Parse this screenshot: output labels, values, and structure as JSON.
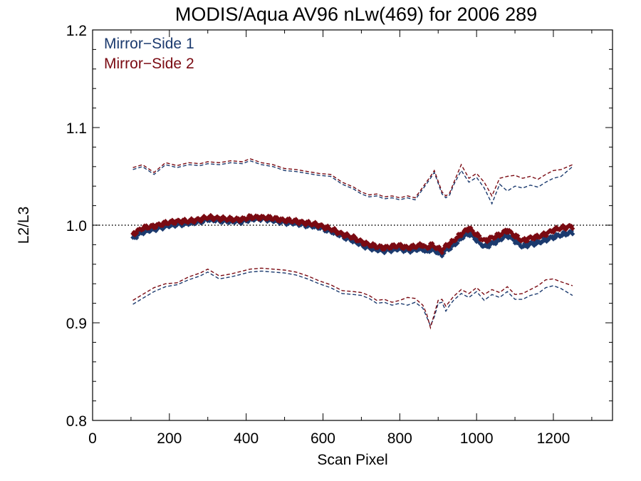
{
  "chart_data": {
    "type": "scatter",
    "title": "MODIS/Aqua AV96 nLw(469) for 2006 289",
    "xlabel": "Scan Pixel",
    "ylabel": "L2/L3",
    "xlim": [
      0,
      1354
    ],
    "ylim": [
      0.8,
      1.2
    ],
    "x_ticks": [
      0,
      200,
      400,
      600,
      800,
      1000,
      1200
    ],
    "y_ticks": [
      0.8,
      0.9,
      1.0,
      1.1,
      1.2
    ],
    "x_tick_labels": [
      "0",
      "200",
      "400",
      "600",
      "800",
      "1000",
      "1200"
    ],
    "y_tick_labels": [
      "0.8",
      "0.9",
      "1.0",
      "1.1",
      "1.2"
    ],
    "reference_line": {
      "y": 1.0,
      "style": "dotted",
      "color": "#000000"
    },
    "legend_position": "top-left",
    "series": [
      {
        "name": "Mirror−Side 1",
        "color": "#1b3a6e",
        "mean": {
          "x": [
            105,
            130,
            160,
            190,
            220,
            250,
            280,
            300,
            330,
            360,
            390,
            410,
            440,
            470,
            500,
            530,
            560,
            590,
            620,
            650,
            680,
            700,
            720,
            740,
            760,
            780,
            800,
            820,
            840,
            860,
            870,
            880,
            890,
            900,
            910,
            920,
            930,
            940,
            960,
            980,
            1000,
            1020,
            1040,
            1060,
            1080,
            1100,
            1120,
            1140,
            1160,
            1180,
            1200,
            1220,
            1250
          ],
          "y": [
            0.987,
            0.993,
            0.996,
            0.999,
            1.001,
            1.002,
            1.004,
            1.006,
            1.005,
            1.004,
            1.004,
            1.006,
            1.007,
            1.005,
            1.003,
            1.002,
            1.0,
            0.998,
            0.994,
            0.989,
            0.984,
            0.98,
            0.977,
            0.975,
            0.974,
            0.975,
            0.976,
            0.974,
            0.975,
            0.976,
            0.972,
            0.976,
            0.974,
            0.972,
            0.97,
            0.975,
            0.977,
            0.979,
            0.987,
            0.992,
            0.985,
            0.978,
            0.981,
            0.985,
            0.99,
            0.984,
            0.978,
            0.981,
            0.982,
            0.985,
            0.988,
            0.99,
            0.993
          ]
        },
        "upper": {
          "x": [
            105,
            130,
            160,
            190,
            220,
            250,
            280,
            300,
            330,
            360,
            390,
            410,
            440,
            470,
            500,
            530,
            560,
            590,
            620,
            650,
            680,
            700,
            720,
            740,
            760,
            780,
            800,
            820,
            840,
            860,
            880,
            890,
            900,
            910,
            920,
            930,
            940,
            960,
            980,
            1000,
            1020,
            1040,
            1060,
            1080,
            1100,
            1120,
            1140,
            1160,
            1180,
            1200,
            1220,
            1250
          ],
          "y": [
            1.057,
            1.06,
            1.052,
            1.062,
            1.059,
            1.062,
            1.061,
            1.063,
            1.062,
            1.064,
            1.063,
            1.066,
            1.062,
            1.06,
            1.056,
            1.055,
            1.053,
            1.051,
            1.05,
            1.042,
            1.037,
            1.032,
            1.029,
            1.03,
            1.027,
            1.028,
            1.026,
            1.028,
            1.026,
            1.037,
            1.048,
            1.054,
            1.043,
            1.032,
            1.028,
            1.031,
            1.041,
            1.056,
            1.044,
            1.049,
            1.038,
            1.022,
            1.042,
            1.035,
            1.04,
            1.038,
            1.041,
            1.039,
            1.044,
            1.048,
            1.05,
            1.06
          ]
        },
        "lower": {
          "x": [
            105,
            130,
            160,
            190,
            220,
            250,
            280,
            300,
            330,
            360,
            390,
            410,
            440,
            470,
            500,
            530,
            560,
            590,
            620,
            650,
            680,
            700,
            720,
            740,
            760,
            780,
            800,
            820,
            840,
            860,
            870,
            880,
            890,
            900,
            910,
            920,
            930,
            940,
            960,
            980,
            1000,
            1020,
            1040,
            1060,
            1080,
            1100,
            1120,
            1140,
            1160,
            1180,
            1200,
            1220,
            1250
          ],
          "y": [
            0.919,
            0.925,
            0.932,
            0.937,
            0.939,
            0.944,
            0.948,
            0.952,
            0.945,
            0.947,
            0.95,
            0.952,
            0.953,
            0.952,
            0.951,
            0.949,
            0.945,
            0.94,
            0.936,
            0.93,
            0.929,
            0.928,
            0.925,
            0.92,
            0.921,
            0.918,
            0.92,
            0.918,
            0.921,
            0.915,
            0.906,
            0.897,
            0.906,
            0.92,
            0.921,
            0.912,
            0.918,
            0.923,
            0.93,
            0.926,
            0.932,
            0.923,
            0.929,
            0.926,
            0.932,
            0.924,
            0.924,
            0.928,
            0.93,
            0.936,
            0.938,
            0.935,
            0.928
          ]
        }
      },
      {
        "name": "Mirror−Side 2",
        "color": "#7a0a12",
        "mean": {
          "x": [
            105,
            130,
            160,
            190,
            220,
            250,
            280,
            300,
            330,
            360,
            390,
            410,
            440,
            470,
            500,
            530,
            560,
            590,
            620,
            650,
            680,
            700,
            720,
            740,
            760,
            780,
            800,
            820,
            840,
            860,
            870,
            880,
            890,
            900,
            910,
            920,
            930,
            940,
            960,
            980,
            1000,
            1020,
            1040,
            1060,
            1080,
            1100,
            1120,
            1140,
            1160,
            1180,
            1200,
            1220,
            1250
          ],
          "y": [
            0.991,
            0.997,
            0.999,
            1.002,
            1.004,
            1.004,
            1.006,
            1.008,
            1.007,
            1.006,
            1.006,
            1.008,
            1.008,
            1.007,
            1.005,
            1.004,
            1.002,
            1.0,
            0.996,
            0.991,
            0.987,
            0.983,
            0.98,
            0.978,
            0.977,
            0.978,
            0.979,
            0.977,
            0.978,
            0.98,
            0.976,
            0.98,
            0.978,
            0.976,
            0.974,
            0.979,
            0.981,
            0.984,
            0.991,
            0.997,
            0.99,
            0.984,
            0.987,
            0.99,
            0.995,
            0.989,
            0.984,
            0.987,
            0.988,
            0.991,
            0.995,
            0.997,
            0.999
          ]
        },
        "upper": {
          "x": [
            105,
            130,
            160,
            190,
            220,
            250,
            280,
            300,
            330,
            360,
            390,
            410,
            440,
            470,
            500,
            530,
            560,
            590,
            620,
            650,
            680,
            700,
            720,
            740,
            760,
            780,
            800,
            820,
            840,
            860,
            880,
            890,
            900,
            910,
            920,
            930,
            940,
            960,
            980,
            1000,
            1020,
            1040,
            1060,
            1080,
            1100,
            1120,
            1140,
            1160,
            1180,
            1200,
            1220,
            1250
          ],
          "y": [
            1.059,
            1.062,
            1.054,
            1.064,
            1.061,
            1.064,
            1.063,
            1.065,
            1.064,
            1.066,
            1.065,
            1.068,
            1.064,
            1.062,
            1.058,
            1.057,
            1.055,
            1.053,
            1.052,
            1.044,
            1.039,
            1.034,
            1.031,
            1.032,
            1.029,
            1.03,
            1.028,
            1.03,
            1.028,
            1.039,
            1.05,
            1.056,
            1.045,
            1.034,
            1.03,
            1.033,
            1.043,
            1.062,
            1.048,
            1.053,
            1.044,
            1.03,
            1.048,
            1.05,
            1.051,
            1.048,
            1.05,
            1.047,
            1.052,
            1.056,
            1.057,
            1.062
          ]
        },
        "lower": {
          "x": [
            105,
            130,
            160,
            190,
            220,
            250,
            280,
            300,
            330,
            360,
            390,
            410,
            440,
            470,
            500,
            530,
            560,
            590,
            620,
            650,
            680,
            700,
            720,
            740,
            760,
            780,
            800,
            820,
            840,
            860,
            870,
            880,
            890,
            900,
            910,
            920,
            930,
            940,
            960,
            980,
            1000,
            1020,
            1040,
            1060,
            1080,
            1100,
            1120,
            1140,
            1160,
            1180,
            1200,
            1220,
            1250
          ],
          "y": [
            0.923,
            0.929,
            0.936,
            0.94,
            0.941,
            0.947,
            0.951,
            0.955,
            0.948,
            0.95,
            0.953,
            0.955,
            0.956,
            0.955,
            0.954,
            0.952,
            0.948,
            0.943,
            0.939,
            0.933,
            0.932,
            0.931,
            0.928,
            0.923,
            0.924,
            0.921,
            0.923,
            0.926,
            0.925,
            0.918,
            0.909,
            0.895,
            0.909,
            0.923,
            0.924,
            0.917,
            0.922,
            0.927,
            0.934,
            0.93,
            0.936,
            0.929,
            0.934,
            0.931,
            0.937,
            0.929,
            0.93,
            0.934,
            0.938,
            0.944,
            0.945,
            0.942,
            0.938
          ]
        }
      }
    ]
  }
}
